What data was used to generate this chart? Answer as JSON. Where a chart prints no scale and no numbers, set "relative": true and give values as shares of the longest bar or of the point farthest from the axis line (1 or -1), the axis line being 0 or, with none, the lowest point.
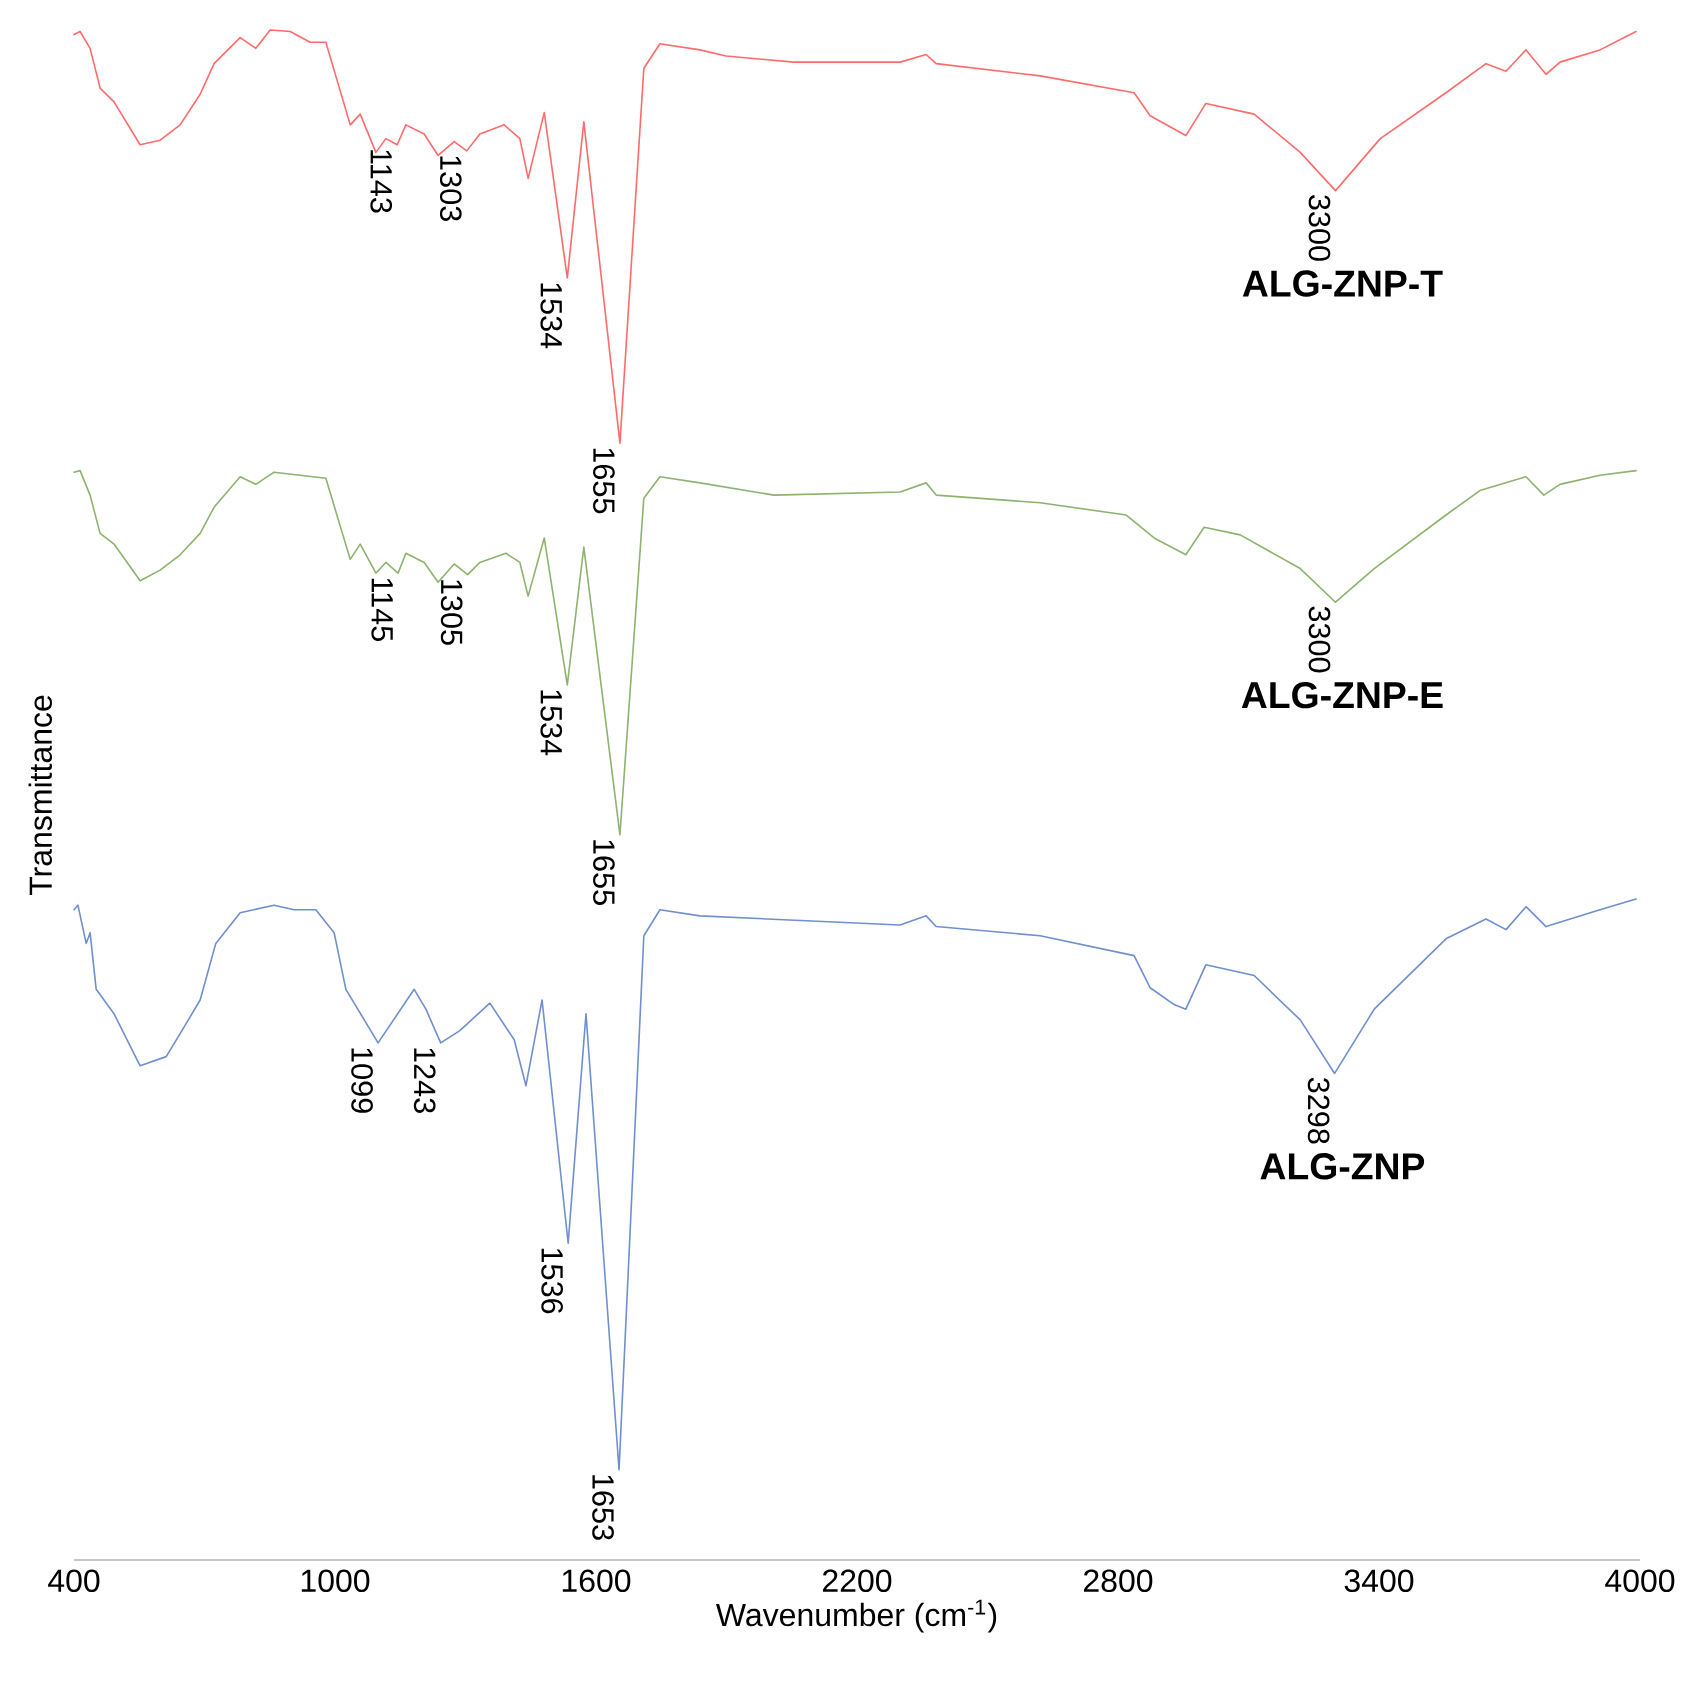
{
  "chart_data": {
    "type": "line",
    "relative": true,
    "xlabel": "Wavenumber (cm$^{-1}$)",
    "ylabel": "Transmittance",
    "xlim": [
      400,
      4000
    ],
    "xticks": [
      400,
      1000,
      1600,
      2200,
      2800,
      3400,
      4000
    ],
    "series": [
      {
        "name": "ALG-ZNP-T",
        "color": "#ff6b6b",
        "x": [
          400,
          414,
          437,
          460,
          492,
          552,
          598,
          644,
          690,
          722,
          782,
          818,
          851,
          897,
          943,
          979,
          1035,
          1058,
          1094,
          1117,
          1143,
          1163,
          1205,
          1237,
          1274,
          1303,
          1333,
          1389,
          1425,
          1444,
          1481,
          1534,
          1572,
          1655,
          1710,
          1747,
          1839,
          1899,
          2055,
          2299,
          2359,
          2382,
          2621,
          2837,
          2874,
          2956,
          3002,
          3113,
          3219,
          3300,
          3403,
          3554,
          3646,
          3692,
          3738,
          3784,
          3816,
          3908,
          3991
        ],
        "values": [
          0.997,
          0.999,
          0.988,
          0.962,
          0.953,
          0.925,
          0.928,
          0.938,
          0.958,
          0.978,
          0.995,
          0.988,
          1.0,
          0.999,
          0.992,
          0.992,
          0.938,
          0.945,
          0.92,
          0.929,
          0.925,
          0.938,
          0.932,
          0.918,
          0.927,
          0.921,
          0.932,
          0.938,
          0.929,
          0.903,
          0.946,
          0.838,
          0.94,
          0.73,
          0.975,
          0.991,
          0.987,
          0.983,
          0.979,
          0.979,
          0.984,
          0.978,
          0.97,
          0.959,
          0.944,
          0.931,
          0.952,
          0.945,
          0.92,
          0.895,
          0.929,
          0.959,
          0.978,
          0.973,
          0.987,
          0.971,
          0.979,
          0.987,
          0.999
        ]
      },
      {
        "name": "ALG-ZNP-E",
        "color": "#8db36e",
        "x": [
          400,
          414,
          437,
          460,
          492,
          552,
          598,
          644,
          690,
          722,
          782,
          818,
          860,
          979,
          1035,
          1058,
          1094,
          1117,
          1145,
          1163,
          1205,
          1237,
          1274,
          1305,
          1333,
          1393,
          1425,
          1444,
          1481,
          1534,
          1572,
          1655,
          1710,
          1747,
          1839,
          2009,
          2299,
          2359,
          2382,
          2621,
          2819,
          2883,
          2956,
          2998,
          3081,
          3219,
          3300,
          3389,
          3554,
          3632,
          3678,
          3738,
          3779,
          3816,
          3908,
          3991
        ],
        "values": [
          0.711,
          0.712,
          0.696,
          0.671,
          0.664,
          0.64,
          0.647,
          0.657,
          0.671,
          0.688,
          0.708,
          0.703,
          0.711,
          0.707,
          0.654,
          0.664,
          0.645,
          0.652,
          0.645,
          0.658,
          0.652,
          0.639,
          0.651,
          0.644,
          0.652,
          0.658,
          0.652,
          0.63,
          0.668,
          0.572,
          0.662,
          0.474,
          0.694,
          0.708,
          0.704,
          0.696,
          0.698,
          0.704,
          0.696,
          0.691,
          0.683,
          0.668,
          0.657,
          0.675,
          0.67,
          0.648,
          0.626,
          0.648,
          0.683,
          0.699,
          0.703,
          0.708,
          0.696,
          0.703,
          0.709,
          0.712
        ]
      },
      {
        "name": "ALG-ZNP",
        "color": "#6f8fcf",
        "x": [
          400,
          409,
          428,
          437,
          451,
          492,
          552,
          612,
          644,
          690,
          726,
          782,
          860,
          906,
          956,
          998,
          1025,
          1099,
          1182,
          1209,
          1243,
          1287,
          1356,
          1412,
          1439,
          1476,
          1536,
          1577,
          1653,
          1710,
          1747,
          1839,
          2299,
          2359,
          2382,
          2621,
          2837,
          2874,
          2929,
          2956,
          3002,
          3113,
          3219,
          3298,
          3389,
          3554,
          3646,
          3692,
          3738,
          3784,
          3908,
          3991
        ],
        "values": [
          0.425,
          0.428,
          0.403,
          0.41,
          0.373,
          0.357,
          0.323,
          0.329,
          0.344,
          0.366,
          0.403,
          0.423,
          0.428,
          0.425,
          0.425,
          0.41,
          0.373,
          0.338,
          0.373,
          0.36,
          0.338,
          0.346,
          0.364,
          0.34,
          0.31,
          0.366,
          0.207,
          0.357,
          0.059,
          0.408,
          0.425,
          0.421,
          0.415,
          0.421,
          0.414,
          0.408,
          0.395,
          0.374,
          0.363,
          0.36,
          0.389,
          0.382,
          0.353,
          0.318,
          0.36,
          0.406,
          0.419,
          0.412,
          0.427,
          0.414,
          0.425,
          0.432
        ]
      }
    ],
    "annotations": [
      {
        "text": "1143",
        "x": 1143,
        "y": 0.925
      },
      {
        "text": "1303",
        "x": 1303,
        "y": 0.921
      },
      {
        "text": "1534",
        "x": 1534,
        "y": 0.838
      },
      {
        "text": "1655",
        "x": 1655,
        "y": 0.73
      },
      {
        "text": "3300",
        "x": 3300,
        "y": 0.895
      },
      {
        "text": "1145",
        "x": 1145,
        "y": 0.645
      },
      {
        "text": "1305",
        "x": 1305,
        "y": 0.644
      },
      {
        "text": "1534",
        "x": 1534,
        "y": 0.572
      },
      {
        "text": "1655",
        "x": 1655,
        "y": 0.474
      },
      {
        "text": "3300",
        "x": 3300,
        "y": 0.626
      },
      {
        "text": "1099",
        "x": 1099,
        "y": 0.338
      },
      {
        "text": "1243",
        "x": 1243,
        "y": 0.338
      },
      {
        "text": "1536",
        "x": 1536,
        "y": 0.207
      },
      {
        "text": "1653",
        "x": 1653,
        "y": 0.059
      },
      {
        "text": "3298",
        "x": 3298,
        "y": 0.318
      }
    ]
  }
}
